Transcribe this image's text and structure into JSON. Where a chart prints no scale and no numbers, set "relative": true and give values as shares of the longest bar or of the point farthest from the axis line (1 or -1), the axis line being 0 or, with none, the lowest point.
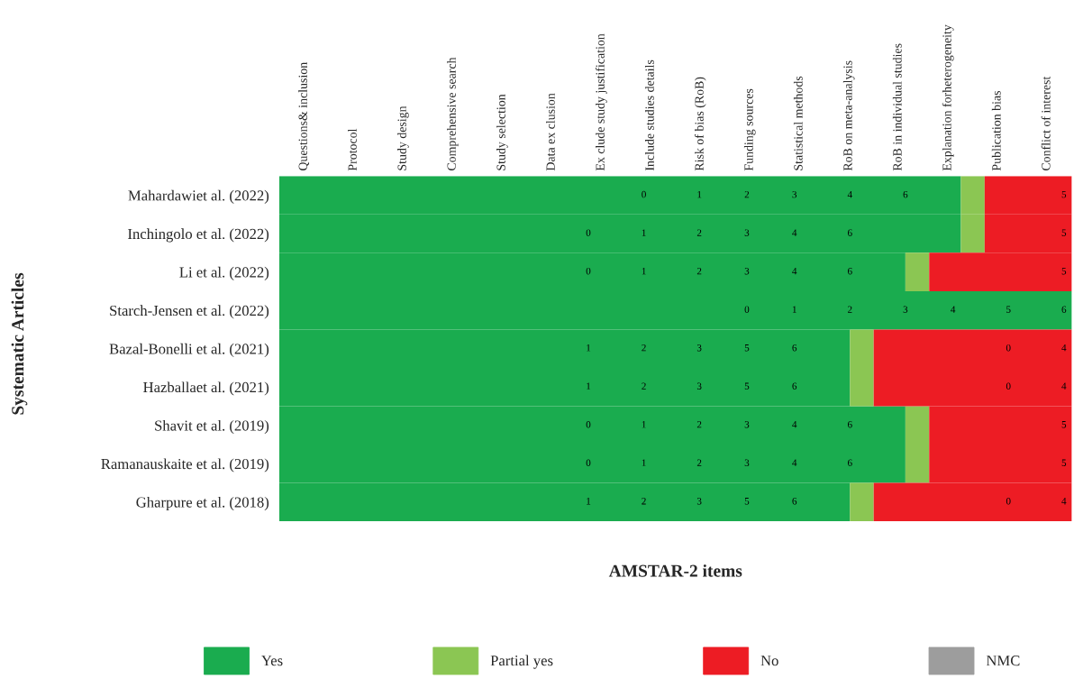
{
  "chart_data": {
    "type": "bar",
    "orientation": "horizontal",
    "stacked": true,
    "relative": true,
    "xlabel": "AMSTAR-2 items",
    "ylabel": "Systematic Articles",
    "categories": [
      "Mahardawiet al. (2022)",
      "Inchingolo et al. (2022)",
      "Li et al. (2022)",
      "Starch-Jensen et al. (2022)",
      "Bazal-Bonelli et al. (2021)",
      "Hazballaet al. (2021)",
      "Shavit et al. (2019)",
      "Ramanauskaite et al. (2019)",
      "Gharpure et al. (2018)"
    ],
    "series": [
      {
        "name": "Yes",
        "color": "#1aac4f",
        "values": [
          0.86,
          0.86,
          0.79,
          1.0,
          0.72,
          0.72,
          0.79,
          0.79,
          0.72
        ]
      },
      {
        "name": "Partial yes",
        "color": "#8bc653",
        "values": [
          0.03,
          0.03,
          0.03,
          0,
          0.03,
          0.03,
          0.03,
          0.03,
          0.03
        ]
      },
      {
        "name": "No",
        "color": "#ed1c24",
        "values": [
          0.11,
          0.11,
          0.18,
          0,
          0.25,
          0.25,
          0.18,
          0.18,
          0.25
        ]
      },
      {
        "name": "NMC",
        "color": "#9d9d9d",
        "values": [
          0,
          0,
          0,
          0,
          0,
          0,
          0,
          0,
          0
        ]
      }
    ],
    "legend": "bottom",
    "annotations": [
      "Questions& inclusion",
      "Protocol",
      "Study design",
      "Comprehensive search",
      "Study selection",
      "Data ex clusion",
      "Ex clude study justification",
      "Include studies details",
      "Risk of bias (RoB)",
      "Funding sources",
      "Statistical methods",
      "RoB on meta-analysis",
      "RoB in individual studies",
      "Explanation forheterogeneity",
      "Publication bias",
      "Conflict of interest",
      {
        "text": "0",
        "x": 0.46,
        "y": "Mahardawiet al. (2022)"
      },
      {
        "text": "1",
        "x": 0.53,
        "y": "Mahardawiet al. (2022)"
      },
      {
        "text": "2",
        "x": 0.59,
        "y": "Mahardawiet al. (2022)"
      },
      {
        "text": "3",
        "x": 0.65,
        "y": "Mahardawiet al. (2022)"
      },
      {
        "text": "4",
        "x": 0.72,
        "y": "Mahardawiet al. (2022)"
      },
      {
        "text": "6",
        "x": 0.79,
        "y": "Mahardawiet al. (2022)"
      },
      {
        "text": "5",
        "x": 0.99,
        "y": "Mahardawiet al. (2022)"
      },
      {
        "text": "0",
        "x": 0.39,
        "y": "Inchingolo et al. (2022)"
      },
      {
        "text": "1",
        "x": 0.46,
        "y": "Inchingolo et al. (2022)"
      },
      {
        "text": "2",
        "x": 0.53,
        "y": "Inchingolo et al. (2022)"
      },
      {
        "text": "3",
        "x": 0.59,
        "y": "Inchingolo et al. (2022)"
      },
      {
        "text": "4",
        "x": 0.65,
        "y": "Inchingolo et al. (2022)"
      },
      {
        "text": "6",
        "x": 0.72,
        "y": "Inchingolo et al. (2022)"
      },
      {
        "text": "5",
        "x": 0.99,
        "y": "Inchingolo et al. (2022)"
      },
      {
        "text": "0",
        "x": 0.39,
        "y": "Li et al. (2022)"
      },
      {
        "text": "1",
        "x": 0.46,
        "y": "Li et al. (2022)"
      },
      {
        "text": "2",
        "x": 0.53,
        "y": "Li et al. (2022)"
      },
      {
        "text": "3",
        "x": 0.59,
        "y": "Li et al. (2022)"
      },
      {
        "text": "4",
        "x": 0.65,
        "y": "Li et al. (2022)"
      },
      {
        "text": "6",
        "x": 0.72,
        "y": "Li et al. (2022)"
      },
      {
        "text": "5",
        "x": 0.99,
        "y": "Li et al. (2022)"
      },
      {
        "text": "0",
        "x": 0.59,
        "y": "Starch-Jensen et al. (2022)"
      },
      {
        "text": "1",
        "x": 0.65,
        "y": "Starch-Jensen et al. (2022)"
      },
      {
        "text": "2",
        "x": 0.72,
        "y": "Starch-Jensen et al. (2022)"
      },
      {
        "text": "3",
        "x": 0.79,
        "y": "Starch-Jensen et al. (2022)"
      },
      {
        "text": "4",
        "x": 0.85,
        "y": "Starch-Jensen et al. (2022)"
      },
      {
        "text": "5",
        "x": 0.92,
        "y": "Starch-Jensen et al. (2022)"
      },
      {
        "text": "6",
        "x": 0.99,
        "y": "Starch-Jensen et al. (2022)"
      },
      {
        "text": "1",
        "x": 0.39,
        "y": "Bazal-Bonelli et al. (2021)"
      },
      {
        "text": "2",
        "x": 0.46,
        "y": "Bazal-Bonelli et al. (2021)"
      },
      {
        "text": "3",
        "x": 0.53,
        "y": "Bazal-Bonelli et al. (2021)"
      },
      {
        "text": "5",
        "x": 0.59,
        "y": "Bazal-Bonelli et al. (2021)"
      },
      {
        "text": "6",
        "x": 0.65,
        "y": "Bazal-Bonelli et al. (2021)"
      },
      {
        "text": "0",
        "x": 0.92,
        "y": "Bazal-Bonelli et al. (2021)"
      },
      {
        "text": "4",
        "x": 0.99,
        "y": "Bazal-Bonelli et al. (2021)"
      },
      {
        "text": "1",
        "x": 0.39,
        "y": "Hazballaet al. (2021)"
      },
      {
        "text": "2",
        "x": 0.46,
        "y": "Hazballaet al. (2021)"
      },
      {
        "text": "3",
        "x": 0.53,
        "y": "Hazballaet al. (2021)"
      },
      {
        "text": "5",
        "x": 0.59,
        "y": "Hazballaet al. (2021)"
      },
      {
        "text": "6",
        "x": 0.65,
        "y": "Hazballaet al. (2021)"
      },
      {
        "text": "0",
        "x": 0.92,
        "y": "Hazballaet al. (2021)"
      },
      {
        "text": "4",
        "x": 0.99,
        "y": "Hazballaet al. (2021)"
      },
      {
        "text": "0",
        "x": 0.39,
        "y": "Shavit et al. (2019)"
      },
      {
        "text": "1",
        "x": 0.46,
        "y": "Shavit et al. (2019)"
      },
      {
        "text": "2",
        "x": 0.53,
        "y": "Shavit et al. (2019)"
      },
      {
        "text": "3",
        "x": 0.59,
        "y": "Shavit et al. (2019)"
      },
      {
        "text": "4",
        "x": 0.65,
        "y": "Shavit et al. (2019)"
      },
      {
        "text": "6",
        "x": 0.72,
        "y": "Shavit et al. (2019)"
      },
      {
        "text": "5",
        "x": 0.99,
        "y": "Shavit et al. (2019)"
      },
      {
        "text": "0",
        "x": 0.39,
        "y": "Ramanauskaite et al. (2019)"
      },
      {
        "text": "1",
        "x": 0.46,
        "y": "Ramanauskaite et al. (2019)"
      },
      {
        "text": "2",
        "x": 0.53,
        "y": "Ramanauskaite et al. (2019)"
      },
      {
        "text": "3",
        "x": 0.59,
        "y": "Ramanauskaite et al. (2019)"
      },
      {
        "text": "4",
        "x": 0.65,
        "y": "Ramanauskaite et al. (2019)"
      },
      {
        "text": "6",
        "x": 0.72,
        "y": "Ramanauskaite et al. (2019)"
      },
      {
        "text": "5",
        "x": 0.99,
        "y": "Ramanauskaite et al. (2019)"
      },
      {
        "text": "1",
        "x": 0.39,
        "y": "Gharpure et al. (2018)"
      },
      {
        "text": "2",
        "x": 0.46,
        "y": "Gharpure et al. (2018)"
      },
      {
        "text": "3",
        "x": 0.53,
        "y": "Gharpure et al. (2018)"
      },
      {
        "text": "5",
        "x": 0.59,
        "y": "Gharpure et al. (2018)"
      },
      {
        "text": "6",
        "x": 0.65,
        "y": "Gharpure et al. (2018)"
      },
      {
        "text": "0",
        "x": 0.92,
        "y": "Gharpure et al. (2018)"
      },
      {
        "text": "4",
        "x": 0.99,
        "y": "Gharpure et al. (2018)"
      }
    ]
  }
}
